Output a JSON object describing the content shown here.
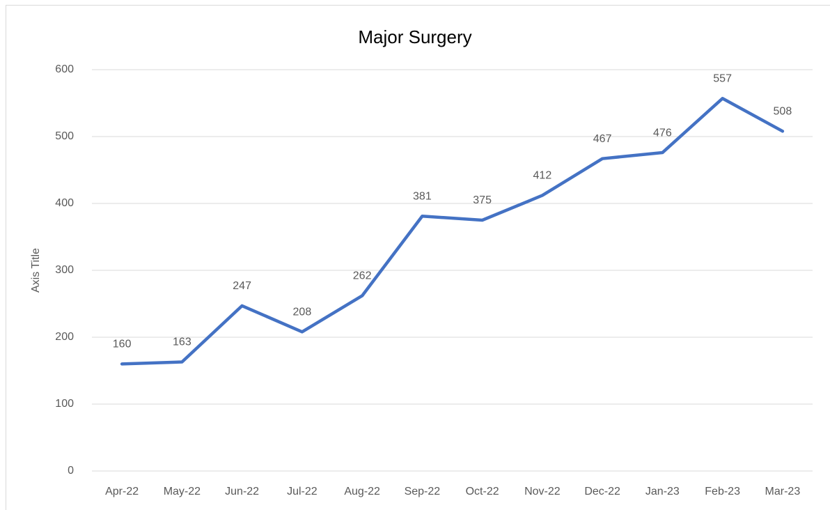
{
  "chart_data": {
    "type": "line",
    "title": "Major Surgery",
    "y_label": "Axis Title",
    "categories": [
      "Apr-22",
      "May-22",
      "Jun-22",
      "Jul-22",
      "Aug-22",
      "Sep-22",
      "Oct-22",
      "Nov-22",
      "Dec-22",
      "Jan-23",
      "Feb-23",
      "Mar-23"
    ],
    "values": [
      160,
      163,
      247,
      208,
      262,
      381,
      375,
      412,
      467,
      476,
      557,
      508
    ],
    "color": "#4472c4",
    "ylim": [
      0,
      600
    ],
    "yticks": [
      0,
      100,
      200,
      300,
      400,
      500,
      600
    ],
    "grid": true
  }
}
